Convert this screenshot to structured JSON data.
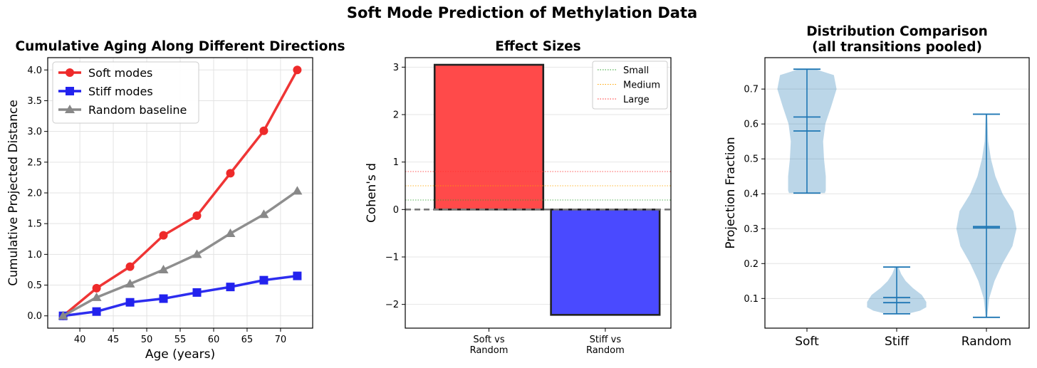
{
  "figure": {
    "suptitle": "Soft Mode Prediction of Methylation Data"
  },
  "chart_data": [
    {
      "type": "line",
      "title": "Cumulative Aging Along Different Directions",
      "xlabel": "Age (years)",
      "ylabel": "Cumulative Projected Distance",
      "xlim": [
        35.2,
        74.8
      ],
      "ylim": [
        -0.2,
        4.2
      ],
      "xticks": [
        "40",
        "45",
        "50",
        "55",
        "60",
        "65",
        "70"
      ],
      "yticks": [
        "0.0",
        "0.5",
        "1.0",
        "1.5",
        "2.0",
        "2.5",
        "3.0",
        "3.5",
        "4.0"
      ],
      "grid": true,
      "legend_position": "upper-left",
      "x": [
        37.5,
        42.5,
        47.5,
        52.5,
        57.5,
        62.5,
        67.5,
        72.5
      ],
      "series": [
        {
          "name": "Soft modes",
          "color": "#ee2a2a",
          "marker": "circle",
          "values": [
            0.0,
            0.45,
            0.8,
            1.31,
            1.63,
            2.32,
            3.01,
            4.0
          ]
        },
        {
          "name": "Stiff modes",
          "color": "#2222ee",
          "marker": "square",
          "values": [
            0.0,
            0.07,
            0.22,
            0.28,
            0.38,
            0.47,
            0.58,
            0.65
          ]
        },
        {
          "name": "Random baseline",
          "color": "#888888",
          "marker": "triangle",
          "values": [
            0.0,
            0.3,
            0.52,
            0.75,
            1.0,
            1.34,
            1.65,
            2.03
          ]
        }
      ]
    },
    {
      "type": "bar",
      "title": "Effect Sizes",
      "ylabel": "Cohen's d",
      "categories": [
        "Soft vs\nRandom",
        "Stiff vs\nRandom"
      ],
      "values": [
        3.05,
        -2.22
      ],
      "colors": [
        "#ff4a4a",
        "#4a4aff"
      ],
      "ylim": [
        -2.5,
        3.2
      ],
      "yticks": [
        "−2",
        "−1",
        "0",
        "1",
        "2",
        "3"
      ],
      "reference_lines": [
        {
          "name": "Small",
          "value": 0.2,
          "color": "#2ca02c"
        },
        {
          "name": "Medium",
          "value": 0.5,
          "color": "#ffa500"
        },
        {
          "name": "Large",
          "value": 0.8,
          "color": "#ff3030"
        }
      ],
      "legend_position": "upper-right"
    },
    {
      "type": "violin",
      "title": "Distribution Comparison\n(all transitions pooled)",
      "ylabel": "Projection Fraction",
      "categories": [
        "Soft",
        "Stiff",
        "Random"
      ],
      "ylim": [
        0.015,
        0.79
      ],
      "yticks": [
        "0.1",
        "0.2",
        "0.3",
        "0.4",
        "0.5",
        "0.6",
        "0.7"
      ],
      "groups": [
        {
          "name": "Soft",
          "min": 0.402,
          "max": 0.757,
          "mean": 0.62,
          "median": 0.58
        },
        {
          "name": "Stiff",
          "min": 0.056,
          "max": 0.19,
          "mean": 0.103,
          "median": 0.088
        },
        {
          "name": "Random",
          "min": 0.046,
          "max": 0.628,
          "mean": 0.306,
          "median": 0.302
        }
      ]
    }
  ]
}
